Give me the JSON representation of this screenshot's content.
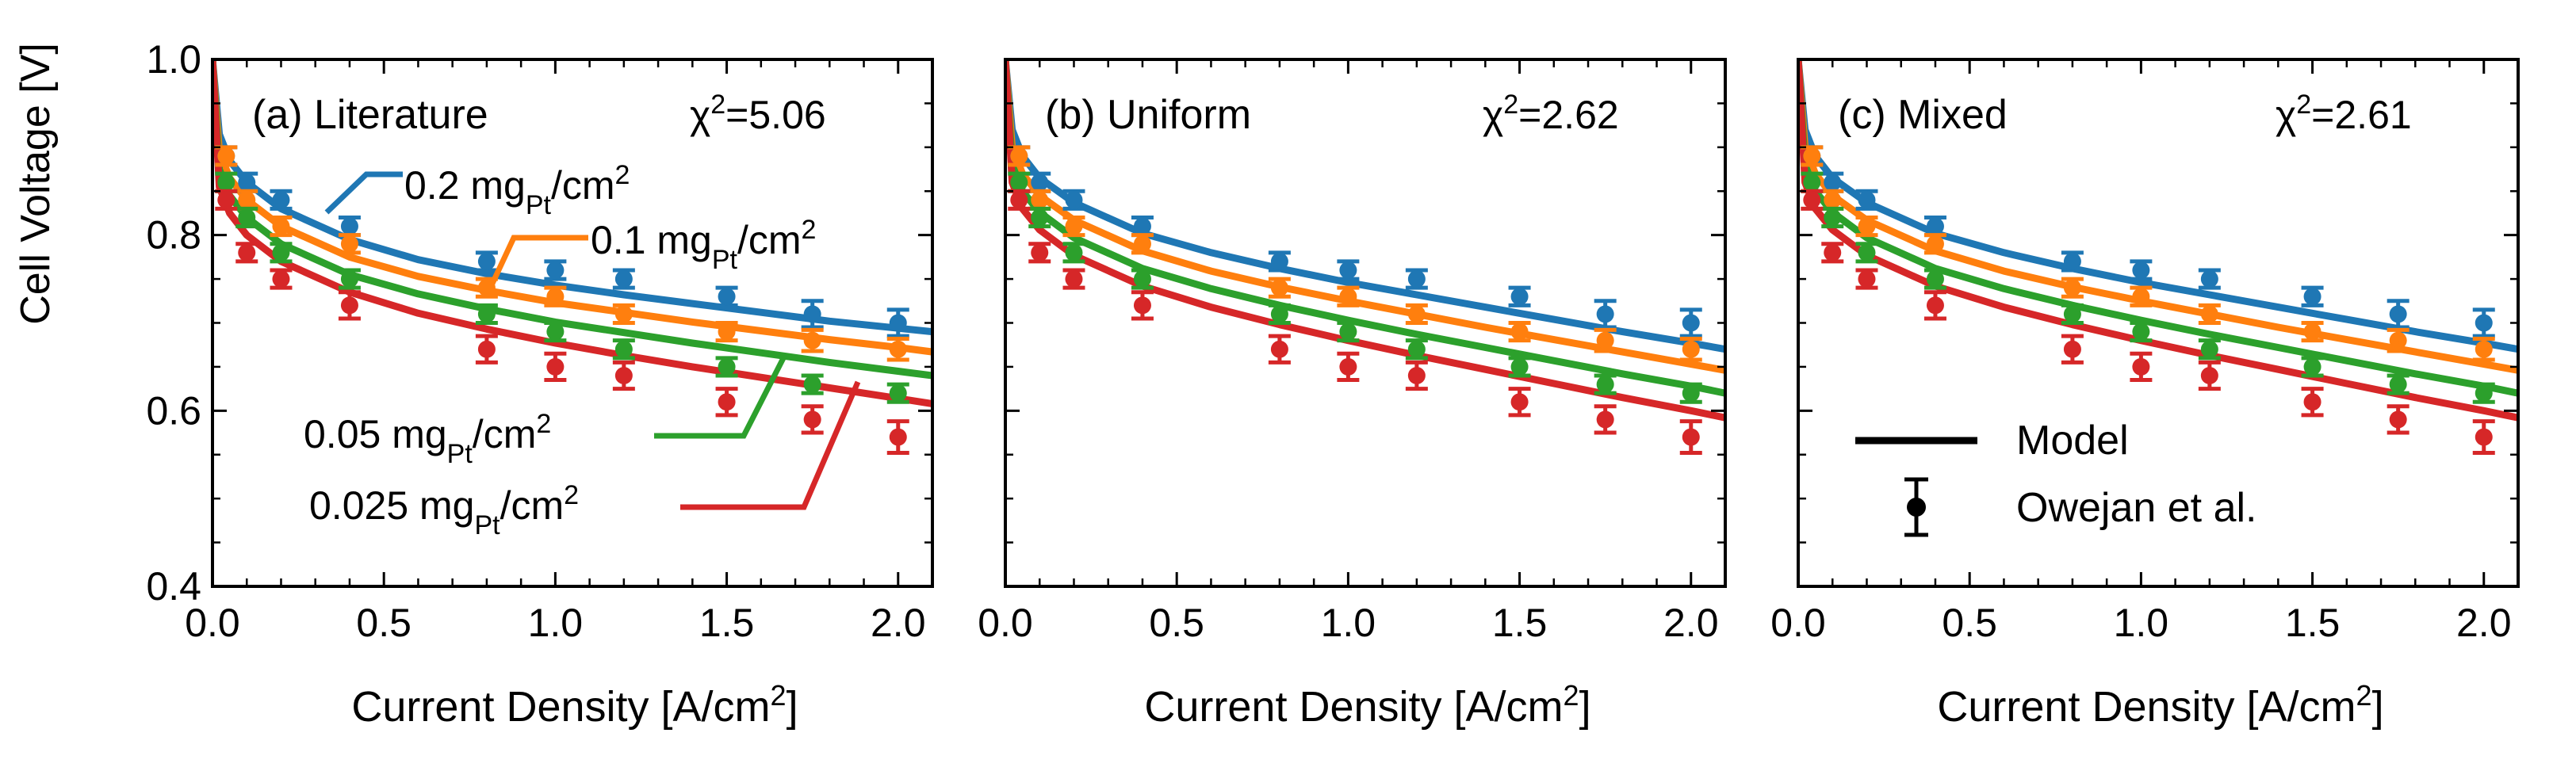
{
  "figure": {
    "ylabel": "Cell Voltage [V]",
    "xlabel_main": "Current Density [A/cm",
    "xlabel_sup": "2",
    "xlabel_end": "]",
    "xtick_labels": [
      "0.0",
      "0.5",
      "1.0",
      "1.5",
      "2.0"
    ],
    "ytick_labels": [
      "0.4",
      "0.6",
      "0.8",
      "1.0"
    ]
  },
  "colors": {
    "0.2": "#1f77b4",
    "0.1": "#ff7f0e",
    "0.05": "#2ca02c",
    "0.025": "#d62728",
    "legend": "#000000"
  },
  "legend": {
    "model": "Model",
    "data": "Owejan et al."
  },
  "chart_data": [
    {
      "type": "line",
      "title": "(a) Literature",
      "stat_symbol": "χ",
      "stat_sup": "2",
      "stat_value": "=5.06",
      "xlabel": "Current Density [A/cm2]",
      "ylabel": "Cell Voltage [V]",
      "xlim": [
        0,
        2.1
      ],
      "ylim": [
        0.4,
        1.0
      ],
      "series_labels": [
        {
          "loading": "0.2",
          "pre": "0.2 mg",
          "sub": "Pt",
          "mid": "/cm",
          "sup": "2"
        },
        {
          "loading": "0.1",
          "pre": "0.1 mg",
          "sub": "Pt",
          "mid": "/cm",
          "sup": "2"
        },
        {
          "loading": "0.05",
          "pre": "0.05 mg",
          "sub": "Pt",
          "mid": "/cm",
          "sup": "2"
        },
        {
          "loading": "0.025",
          "pre": "0.025 mg",
          "sub": "Pt",
          "mid": "/cm",
          "sup": "2"
        }
      ],
      "model": {
        "0.2": {
          "x": [
            0,
            0.02,
            0.05,
            0.1,
            0.2,
            0.4,
            0.6,
            0.8,
            1.0,
            1.2,
            1.4,
            1.6,
            1.8,
            2.0,
            2.1
          ],
          "y": [
            1.0,
            0.915,
            0.885,
            0.86,
            0.83,
            0.795,
            0.772,
            0.756,
            0.743,
            0.732,
            0.722,
            0.712,
            0.702,
            0.694,
            0.69
          ]
        },
        "0.1": {
          "x": [
            0,
            0.02,
            0.05,
            0.1,
            0.2,
            0.4,
            0.6,
            0.8,
            1.0,
            1.2,
            1.4,
            1.6,
            1.8,
            2.0,
            2.1
          ],
          "y": [
            1.0,
            0.895,
            0.865,
            0.84,
            0.81,
            0.775,
            0.753,
            0.737,
            0.723,
            0.712,
            0.701,
            0.691,
            0.681,
            0.672,
            0.667
          ]
        },
        "0.05": {
          "x": [
            0,
            0.02,
            0.05,
            0.1,
            0.2,
            0.4,
            0.6,
            0.8,
            1.0,
            1.2,
            1.4,
            1.6,
            1.8,
            2.0,
            2.1
          ],
          "y": [
            1.0,
            0.875,
            0.845,
            0.82,
            0.79,
            0.755,
            0.733,
            0.716,
            0.701,
            0.689,
            0.677,
            0.666,
            0.655,
            0.645,
            0.64
          ]
        },
        "0.025": {
          "x": [
            0,
            0.02,
            0.05,
            0.1,
            0.2,
            0.4,
            0.6,
            0.8,
            1.0,
            1.2,
            1.4,
            1.6,
            1.8,
            2.0,
            2.1
          ],
          "y": [
            1.0,
            0.855,
            0.825,
            0.8,
            0.77,
            0.735,
            0.711,
            0.693,
            0.677,
            0.663,
            0.65,
            0.638,
            0.626,
            0.614,
            0.608
          ]
        }
      }
    },
    {
      "type": "line",
      "title": "(b) Uniform",
      "stat_symbol": "χ",
      "stat_sup": "2",
      "stat_value": "=2.62",
      "xlabel": "Current Density [A/cm2]",
      "xlim": [
        0,
        2.1
      ],
      "ylim": [
        0.4,
        1.0
      ],
      "model": {
        "0.2": {
          "x": [
            0,
            0.02,
            0.05,
            0.1,
            0.2,
            0.4,
            0.6,
            0.8,
            1.0,
            1.2,
            1.4,
            1.6,
            1.8,
            2.0,
            2.1
          ],
          "y": [
            1.0,
            0.92,
            0.89,
            0.865,
            0.837,
            0.802,
            0.78,
            0.762,
            0.746,
            0.732,
            0.718,
            0.704,
            0.69,
            0.677,
            0.67
          ]
        },
        "0.1": {
          "x": [
            0,
            0.02,
            0.05,
            0.1,
            0.2,
            0.4,
            0.6,
            0.8,
            1.0,
            1.2,
            1.4,
            1.6,
            1.8,
            2.0,
            2.1
          ],
          "y": [
            1.0,
            0.9,
            0.87,
            0.845,
            0.817,
            0.782,
            0.759,
            0.741,
            0.725,
            0.71,
            0.695,
            0.681,
            0.667,
            0.653,
            0.646
          ]
        },
        "0.05": {
          "x": [
            0,
            0.02,
            0.05,
            0.1,
            0.2,
            0.4,
            0.6,
            0.8,
            1.0,
            1.2,
            1.4,
            1.6,
            1.8,
            2.0,
            2.1
          ],
          "y": [
            1.0,
            0.88,
            0.85,
            0.826,
            0.797,
            0.762,
            0.739,
            0.72,
            0.703,
            0.687,
            0.672,
            0.657,
            0.642,
            0.628,
            0.62
          ]
        },
        "0.025": {
          "x": [
            0,
            0.02,
            0.05,
            0.1,
            0.2,
            0.4,
            0.6,
            0.8,
            1.0,
            1.2,
            1.4,
            1.6,
            1.8,
            2.0,
            2.1
          ],
          "y": [
            1.0,
            0.86,
            0.83,
            0.806,
            0.777,
            0.742,
            0.718,
            0.698,
            0.68,
            0.663,
            0.647,
            0.631,
            0.615,
            0.6,
            0.592
          ]
        }
      }
    },
    {
      "type": "line",
      "title": "(c) Mixed",
      "stat_symbol": "χ",
      "stat_sup": "2",
      "stat_value": "=2.61",
      "xlabel": "Current Density [A/cm2]",
      "xlim": [
        0,
        2.1
      ],
      "ylim": [
        0.4,
        1.0
      ],
      "model": {
        "0.2": {
          "x": [
            0,
            0.02,
            0.05,
            0.1,
            0.2,
            0.4,
            0.6,
            0.8,
            1.0,
            1.2,
            1.4,
            1.6,
            1.8,
            2.0,
            2.1
          ],
          "y": [
            1.0,
            0.92,
            0.89,
            0.865,
            0.837,
            0.802,
            0.78,
            0.762,
            0.746,
            0.732,
            0.718,
            0.704,
            0.69,
            0.677,
            0.67
          ]
        },
        "0.1": {
          "x": [
            0,
            0.02,
            0.05,
            0.1,
            0.2,
            0.4,
            0.6,
            0.8,
            1.0,
            1.2,
            1.4,
            1.6,
            1.8,
            2.0,
            2.1
          ],
          "y": [
            1.0,
            0.9,
            0.87,
            0.845,
            0.817,
            0.782,
            0.759,
            0.741,
            0.725,
            0.71,
            0.695,
            0.681,
            0.667,
            0.653,
            0.646
          ]
        },
        "0.05": {
          "x": [
            0,
            0.02,
            0.05,
            0.1,
            0.2,
            0.4,
            0.6,
            0.8,
            1.0,
            1.2,
            1.4,
            1.6,
            1.8,
            2.0,
            2.1
          ],
          "y": [
            1.0,
            0.88,
            0.85,
            0.826,
            0.797,
            0.762,
            0.739,
            0.72,
            0.703,
            0.687,
            0.672,
            0.657,
            0.642,
            0.628,
            0.62
          ]
        },
        "0.025": {
          "x": [
            0,
            0.02,
            0.05,
            0.1,
            0.2,
            0.4,
            0.6,
            0.8,
            1.0,
            1.2,
            1.4,
            1.6,
            1.8,
            2.0,
            2.1
          ],
          "y": [
            1.0,
            0.86,
            0.83,
            0.806,
            0.777,
            0.742,
            0.718,
            0.698,
            0.68,
            0.663,
            0.647,
            0.631,
            0.615,
            0.6,
            0.592
          ]
        }
      }
    }
  ],
  "experimental_data": {
    "x": [
      0.04,
      0.1,
      0.2,
      0.4,
      0.8,
      1.0,
      1.2,
      1.5,
      1.75,
      2.0
    ],
    "0.2": {
      "y": [
        0.89,
        0.86,
        0.84,
        0.81,
        0.77,
        0.76,
        0.75,
        0.73,
        0.71,
        0.7
      ],
      "err": [
        0.01,
        0.01,
        0.01,
        0.01,
        0.01,
        0.01,
        0.01,
        0.01,
        0.015,
        0.015
      ]
    },
    "0.1": {
      "y": [
        0.89,
        0.84,
        0.81,
        0.79,
        0.74,
        0.73,
        0.71,
        0.69,
        0.68,
        0.67
      ],
      "err": [
        0.01,
        0.01,
        0.01,
        0.01,
        0.01,
        0.01,
        0.01,
        0.01,
        0.012,
        0.012
      ]
    },
    "0.05": {
      "y": [
        0.86,
        0.82,
        0.78,
        0.75,
        0.71,
        0.69,
        0.67,
        0.65,
        0.63,
        0.62
      ],
      "err": [
        0.01,
        0.01,
        0.01,
        0.01,
        0.01,
        0.01,
        0.01,
        0.01,
        0.01,
        0.01
      ]
    },
    "0.025": {
      "y": [
        0.84,
        0.78,
        0.75,
        0.72,
        0.67,
        0.65,
        0.64,
        0.61,
        0.59,
        0.57
      ],
      "err": [
        0.01,
        0.01,
        0.01,
        0.015,
        0.015,
        0.015,
        0.015,
        0.015,
        0.015,
        0.018
      ]
    }
  }
}
